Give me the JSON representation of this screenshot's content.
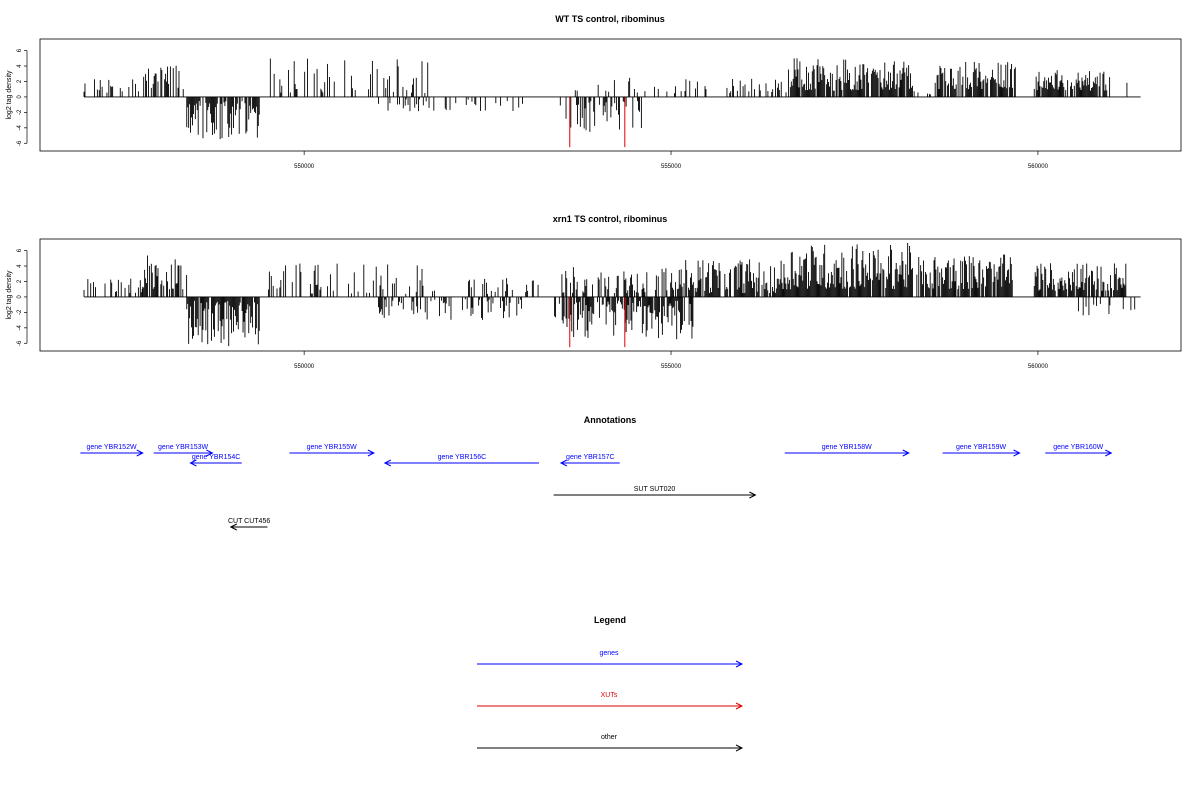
{
  "chart_data": [
    {
      "type": "bar",
      "title": "WT TS control, ribominus",
      "ylabel": "log2 tag density",
      "xlim": [
        546400,
        561950
      ],
      "ylim": [
        -7,
        7.5
      ],
      "xticks": [
        550000,
        555000,
        560000
      ],
      "xtick_labels": [
        "550000",
        "555000",
        "560000"
      ],
      "yticks": [
        -6,
        -4,
        -2,
        0,
        2,
        4,
        6
      ],
      "ytick_labels": [
        "-6",
        "-4",
        "-2",
        "0",
        "2",
        "4",
        "6"
      ],
      "data_range": [
        547000,
        561400
      ],
      "highlight_color": "#e00000",
      "highlights": [
        {
          "x": 553620,
          "value": -6.5
        },
        {
          "x": 554370,
          "value": -6.5
        }
      ],
      "regions": [
        {
          "x": [
            547000,
            547800
          ],
          "sign": 1,
          "min": 0.5,
          "max": 2.5,
          "density": 0.3
        },
        {
          "x": [
            547800,
            548300
          ],
          "sign": 1,
          "min": 1.0,
          "max": 4.3,
          "density": 0.45
        },
        {
          "x": [
            548300,
            548500
          ],
          "sign": 1,
          "min": 0.5,
          "max": 2.0,
          "density": 0.3
        },
        {
          "x": [
            548400,
            549400
          ],
          "sign": -1,
          "min": 0.5,
          "max": 5.5,
          "density": 0.85
        },
        {
          "x": [
            549500,
            551800
          ],
          "sign": 1,
          "min": 0.4,
          "max": 5.0,
          "density": 0.22
        },
        {
          "x": [
            551000,
            553000
          ],
          "sign": -1,
          "min": 0.3,
          "max": 2.0,
          "density": 0.18
        },
        {
          "x": [
            553400,
            554600
          ],
          "sign": -1,
          "min": 0.5,
          "max": 4.8,
          "density": 0.4
        },
        {
          "x": [
            553500,
            555800
          ],
          "sign": 1,
          "min": 0.5,
          "max": 2.5,
          "density": 0.15
        },
        {
          "x": [
            555800,
            556600
          ],
          "sign": 1,
          "min": 0.3,
          "max": 2.5,
          "density": 0.35
        },
        {
          "x": [
            556600,
            558300
          ],
          "sign": 1,
          "min": 0.8,
          "max": 5.0,
          "density": 0.85
        },
        {
          "x": [
            558300,
            558600
          ],
          "sign": 1,
          "min": 0.3,
          "max": 1.0,
          "density": 0.1
        },
        {
          "x": [
            558600,
            559700
          ],
          "sign": 1,
          "min": 1.0,
          "max": 4.6,
          "density": 0.85
        },
        {
          "x": [
            559950,
            561000
          ],
          "sign": 1,
          "min": 0.8,
          "max": 3.5,
          "density": 0.8
        },
        {
          "x": [
            561200,
            561300
          ],
          "sign": 1,
          "min": 1.5,
          "max": 2.2,
          "density": 0.3
        }
      ]
    },
    {
      "type": "bar",
      "title": "xrn1 TS control, ribominus",
      "ylabel": "log2 tag density",
      "xlim": [
        546400,
        561950
      ],
      "ylim": [
        -7,
        7.5
      ],
      "xticks": [
        550000,
        555000,
        560000
      ],
      "xtick_labels": [
        "550000",
        "555000",
        "560000"
      ],
      "yticks": [
        -6,
        -4,
        -2,
        0,
        2,
        4,
        6
      ],
      "ytick_labels": [
        "-6",
        "-4",
        "-2",
        "0",
        "2",
        "4",
        "6"
      ],
      "data_range": [
        547000,
        561400
      ],
      "highlight_color": "#e00000",
      "highlights": [
        {
          "x": 553620,
          "value": -6.5
        },
        {
          "x": 554370,
          "value": -6.5
        }
      ],
      "regions": [
        {
          "x": [
            547000,
            547800
          ],
          "sign": 1,
          "min": 0.5,
          "max": 2.5,
          "density": 0.45
        },
        {
          "x": [
            547800,
            548400
          ],
          "sign": 1,
          "min": 1.0,
          "max": 5.7,
          "density": 0.7
        },
        {
          "x": [
            548400,
            549400
          ],
          "sign": -1,
          "min": 0.5,
          "max": 6.5,
          "density": 0.95
        },
        {
          "x": [
            549500,
            551800
          ],
          "sign": 1,
          "min": 0.4,
          "max": 4.5,
          "density": 0.3
        },
        {
          "x": [
            551000,
            553000
          ],
          "sign": -1,
          "min": 0.3,
          "max": 3.0,
          "density": 0.35
        },
        {
          "x": [
            552200,
            553200
          ],
          "sign": 1,
          "min": 0.3,
          "max": 2.5,
          "density": 0.3
        },
        {
          "x": [
            553400,
            555300
          ],
          "sign": -1,
          "min": 0.5,
          "max": 5.5,
          "density": 0.75
        },
        {
          "x": [
            553500,
            555200
          ],
          "sign": 1,
          "min": 0.5,
          "max": 4.0,
          "density": 0.55
        },
        {
          "x": [
            555200,
            556600
          ],
          "sign": 1,
          "min": 0.5,
          "max": 5.0,
          "density": 0.75
        },
        {
          "x": [
            556600,
            558300
          ],
          "sign": 1,
          "min": 1.0,
          "max": 7.0,
          "density": 0.95
        },
        {
          "x": [
            558350,
            559650
          ],
          "sign": 1,
          "min": 1.0,
          "max": 5.5,
          "density": 0.9
        },
        {
          "x": [
            559950,
            561200
          ],
          "sign": 1,
          "min": 0.8,
          "max": 4.5,
          "density": 0.9
        },
        {
          "x": [
            560500,
            561350
          ],
          "sign": -1,
          "min": 0.5,
          "max": 3.2,
          "density": 0.15
        }
      ]
    }
  ],
  "annotations": {
    "title": "Annotations",
    "features": [
      {
        "label": "gene YBR152W",
        "type": "genes",
        "strand": "+",
        "start": 546950,
        "end": 547800,
        "row": 0
      },
      {
        "label": "gene YBR153W",
        "type": "genes",
        "strand": "+",
        "start": 547950,
        "end": 548750,
        "row": 0
      },
      {
        "label": "gene YBR154C",
        "type": "genes",
        "strand": "-",
        "start": 548450,
        "end": 549150,
        "row": 1
      },
      {
        "label": "gene YBR155W",
        "type": "genes",
        "strand": "+",
        "start": 549800,
        "end": 550950,
        "row": 0
      },
      {
        "label": "gene YBR156C",
        "type": "genes",
        "strand": "-",
        "start": 551100,
        "end": 553200,
        "row": 1
      },
      {
        "label": "gene YBR157C",
        "type": "genes",
        "strand": "-",
        "start": 553500,
        "end": 554300,
        "row": 1
      },
      {
        "label": "SUT SUT020",
        "type": "other",
        "strand": "+",
        "start": 553400,
        "end": 556150,
        "row": 2
      },
      {
        "label": "gene YBR158W",
        "type": "genes",
        "strand": "+",
        "start": 556550,
        "end": 558240,
        "row": 0
      },
      {
        "label": "gene YBR159W",
        "type": "genes",
        "strand": "+",
        "start": 558700,
        "end": 559750,
        "row": 0
      },
      {
        "label": "gene YBR160W",
        "type": "genes",
        "strand": "+",
        "start": 560100,
        "end": 561000,
        "row": 0
      },
      {
        "label": "CUT CUT456",
        "type": "other",
        "strand": "-",
        "start": 549000,
        "end": 549500,
        "row": 3
      }
    ]
  },
  "legend": {
    "title": "Legend",
    "items": [
      {
        "label": "genes",
        "color": "#0000ff"
      },
      {
        "label": "XUTs",
        "color": "#e00000"
      },
      {
        "label": "other",
        "color": "#000000"
      }
    ]
  },
  "colors": {
    "genes": "#0000ff",
    "XUTs": "#e00000",
    "other": "#000000"
  }
}
